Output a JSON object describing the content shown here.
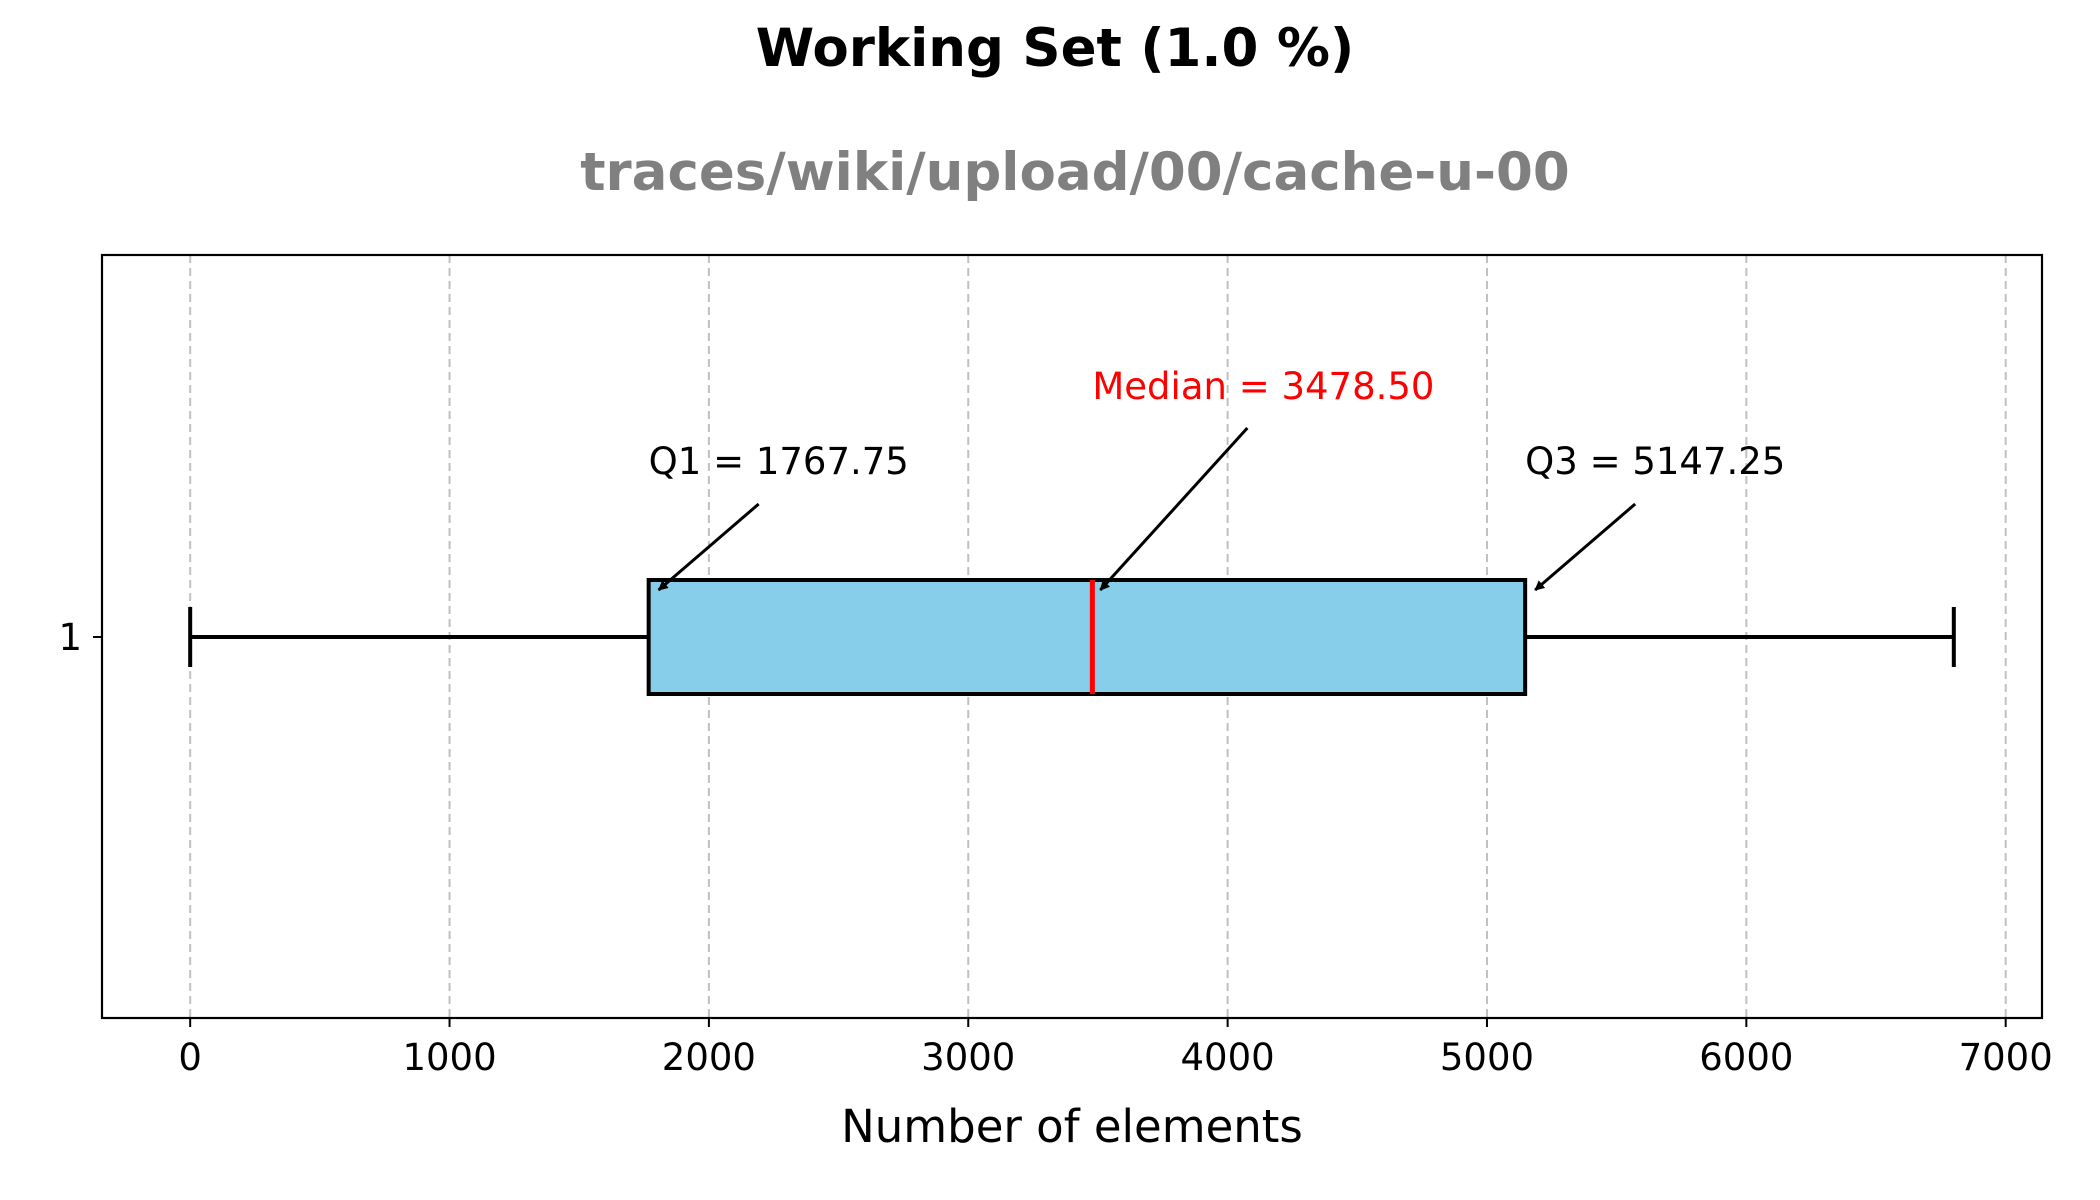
{
  "chart_data": {
    "type": "box",
    "orientation": "horizontal",
    "title": "Working Set (1.0 %)",
    "subtitle": "traces/wiki/upload/00/cache-u-00",
    "xlabel": "Number of elements",
    "ylabel": "",
    "xlim": [
      -340,
      7140
    ],
    "x_ticks": [
      0,
      1000,
      2000,
      3000,
      4000,
      5000,
      6000,
      7000
    ],
    "y_categories": [
      "1"
    ],
    "grid": {
      "x": true,
      "y": false,
      "style": "dashed"
    },
    "boxes": [
      {
        "name": "1",
        "whisker_low": 0,
        "q1": 1767.75,
        "median": 3478.5,
        "q3": 5147.25,
        "whisker_high": 6800
      }
    ],
    "annotations": [
      {
        "key": "q1",
        "text": "Q1 = 1767.75",
        "color": "#000000"
      },
      {
        "key": "median",
        "text": "Median = 3478.50",
        "color": "#ff0000"
      },
      {
        "key": "q3",
        "text": "Q3 = 5147.25",
        "color": "#000000"
      }
    ],
    "colors": {
      "box_fill": "#87ceeb",
      "box_edge": "#000000",
      "median_line": "#ff0000",
      "grid": "#c0c0c0"
    }
  }
}
